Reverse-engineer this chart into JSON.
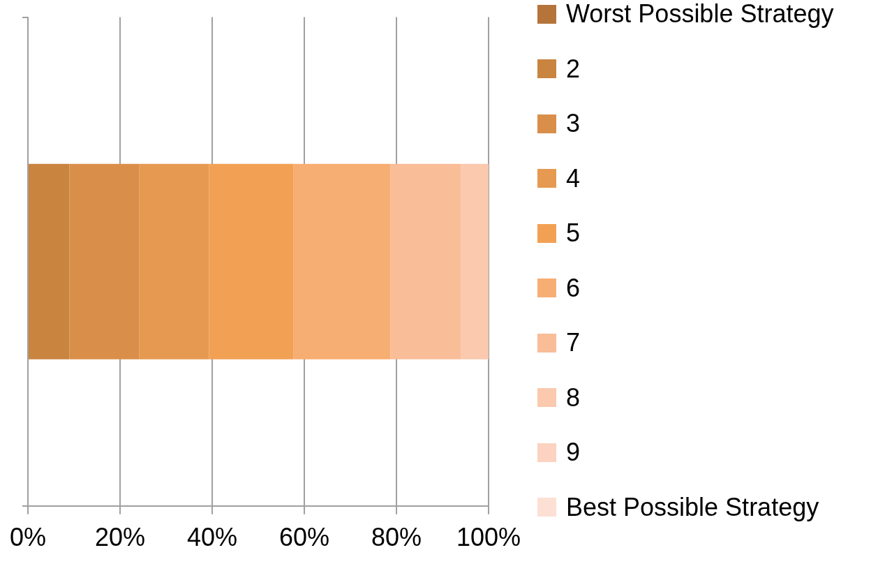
{
  "chart_data": {
    "type": "bar",
    "orientation": "horizontal",
    "stacked": true,
    "categories": [
      null
    ],
    "series": [
      {
        "name": "Worst Possible Strategy",
        "color": "#b5743a",
        "values": [
          0
        ]
      },
      {
        "name": "2",
        "color": "#c9843f",
        "values": [
          9.0
        ]
      },
      {
        "name": "3",
        "color": "#d98f4a",
        "values": [
          15.2
        ]
      },
      {
        "name": "4",
        "color": "#e69950",
        "values": [
          15.1
        ]
      },
      {
        "name": "5",
        "color": "#f2a154",
        "values": [
          18.3
        ]
      },
      {
        "name": "6",
        "color": "#f7ae72",
        "values": [
          21.1
        ]
      },
      {
        "name": "7",
        "color": "#f9bd98",
        "values": [
          15.3
        ]
      },
      {
        "name": "8",
        "color": "#fac9ae",
        "values": [
          6.0
        ]
      },
      {
        "name": "9",
        "color": "#fbd3c0",
        "values": [
          0
        ]
      },
      {
        "name": "Best Possible Strategy",
        "color": "#fce0d4",
        "values": [
          0
        ]
      }
    ],
    "xlim": [
      0,
      100
    ],
    "xticks": [
      {
        "value": 0,
        "label": "0%"
      },
      {
        "value": 20,
        "label": "20%"
      },
      {
        "value": 40,
        "label": "40%"
      },
      {
        "value": 60,
        "label": "60%"
      },
      {
        "value": 80,
        "label": "80%"
      },
      {
        "value": 100,
        "label": "100%"
      }
    ],
    "grid": "x",
    "legend": "right"
  }
}
